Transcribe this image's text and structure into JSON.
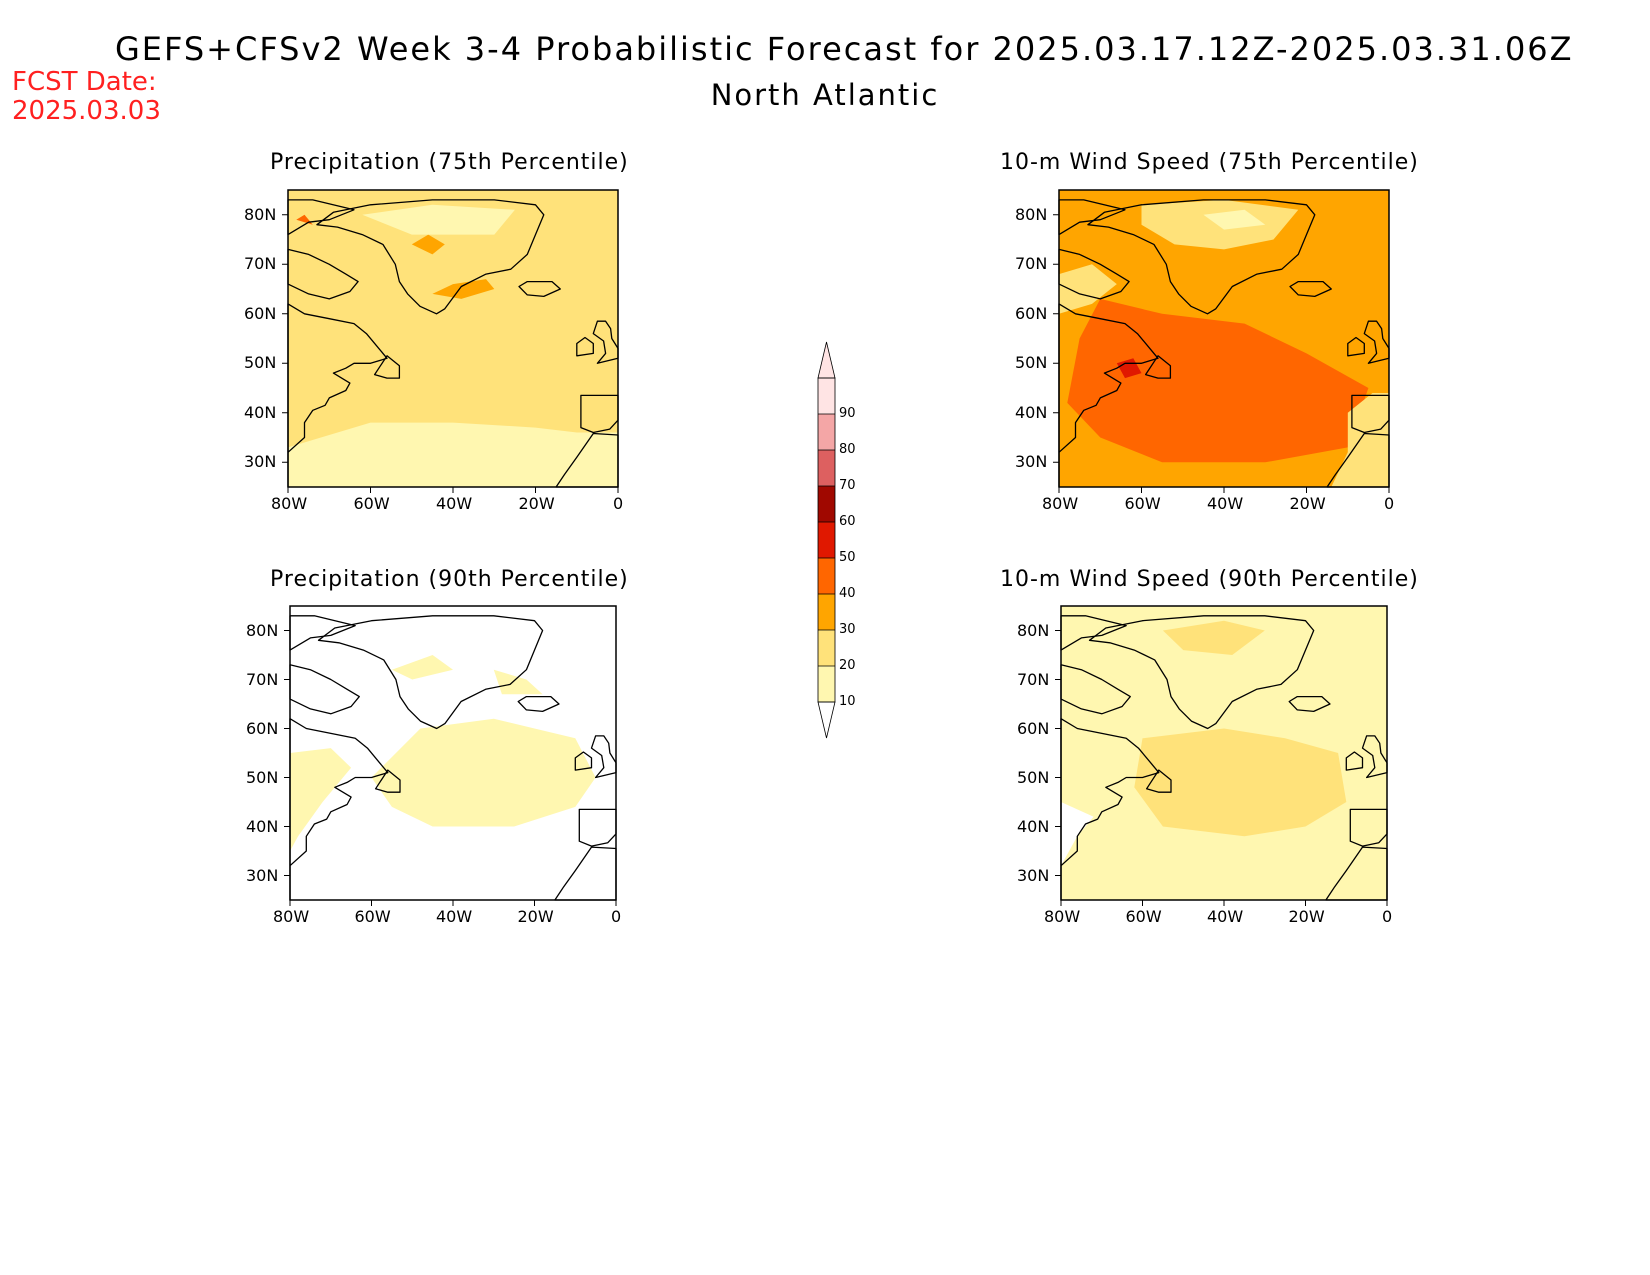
{
  "title": "GEFS+CFSv2 Week 3-4 Probabilistic Forecast for 2025.03.17.12Z-2025.03.31.06Z",
  "subtitle": "North Atlantic",
  "forecast_date": {
    "label": "FCST Date:",
    "value": "2025.03.03"
  },
  "panels": [
    {
      "title": "Precipitation (75th Percentile)",
      "base_level": 20
    },
    {
      "title": "10-m Wind Speed (75th Percentile)",
      "base_level": 30
    },
    {
      "title": "Precipitation (90th Percentile)",
      "base_level": 0
    },
    {
      "title": "10-m Wind Speed (90th Percentile)",
      "base_level": 10
    }
  ],
  "lon_labels": [
    "80W",
    "60W",
    "40W",
    "20W",
    "0"
  ],
  "lat_labels": [
    "80N",
    "70N",
    "60N",
    "50N",
    "40N",
    "30N"
  ],
  "colorbar": {
    "levels": [
      "10",
      "20",
      "30",
      "40",
      "50",
      "60",
      "70",
      "80",
      "90"
    ],
    "colors": [
      "#fff7b0",
      "#ffe27a",
      "#ffa500",
      "#ff6600",
      "#e01800",
      "#a00800",
      "#dd6060",
      "#f4a6a6",
      "#ffe4e4"
    ]
  },
  "colors": {
    "fcst_date": "#ff2020",
    "coast": "#000000"
  }
}
